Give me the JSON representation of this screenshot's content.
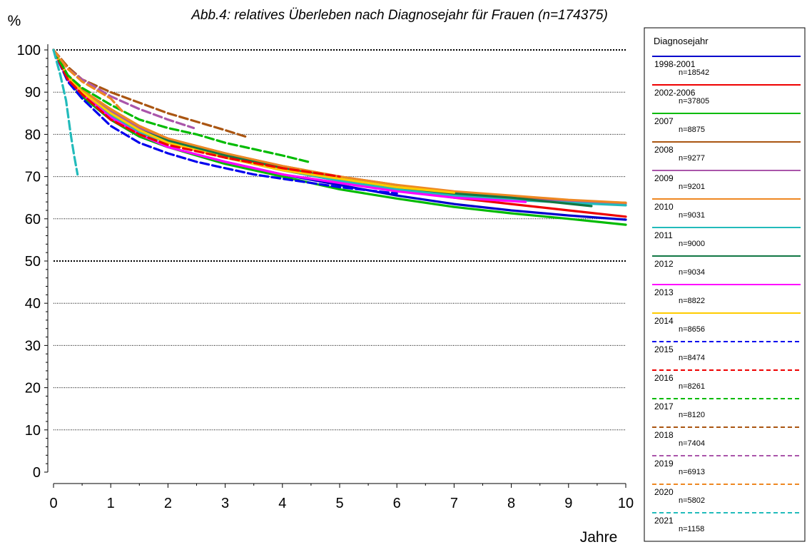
{
  "chart_data": {
    "type": "line",
    "title": "Abb.4: relatives Überleben nach Diagnosejahr für Frauen  (n=174375)",
    "ylabel": "%",
    "xlabel": "Jahre",
    "xlim": [
      0,
      10
    ],
    "ylim": [
      0,
      100
    ],
    "x_ticks": [
      0,
      1,
      2,
      3,
      4,
      5,
      6,
      7,
      8,
      9,
      10
    ],
    "y_ticks": [
      0,
      10,
      20,
      30,
      40,
      50,
      60,
      70,
      80,
      90,
      100
    ],
    "y_minor_step": 2,
    "grid": "horizontal dotted, heavier at 50 and 100",
    "legend": {
      "title": "Diagnosejahr",
      "placement": "right"
    },
    "series": [
      {
        "name": "1998-2001",
        "n": "n=18542",
        "color": "#0000cc",
        "dash": "solid",
        "points": [
          [
            0,
            100
          ],
          [
            0.25,
            93
          ],
          [
            0.5,
            89
          ],
          [
            1,
            83.5
          ],
          [
            1.5,
            79.5
          ],
          [
            2,
            77
          ],
          [
            3,
            73.5
          ],
          [
            4,
            70.5
          ],
          [
            5,
            68
          ],
          [
            6,
            65.5
          ],
          [
            7,
            63.5
          ],
          [
            8,
            62
          ],
          [
            9,
            60.8
          ],
          [
            10,
            59.8
          ]
        ]
      },
      {
        "name": "2002-2006",
        "n": "n=37805",
        "color": "#ee0000",
        "dash": "solid",
        "points": [
          [
            0,
            100
          ],
          [
            0.25,
            93.5
          ],
          [
            0.5,
            90
          ],
          [
            1,
            84.5
          ],
          [
            1.5,
            80.5
          ],
          [
            2,
            78
          ],
          [
            3,
            74.5
          ],
          [
            4,
            71.5
          ],
          [
            5,
            69
          ],
          [
            6,
            67
          ],
          [
            7,
            65
          ],
          [
            8,
            63.5
          ],
          [
            9,
            62
          ],
          [
            10,
            60.5
          ]
        ]
      },
      {
        "name": "2007",
        "n": "n=8875",
        "color": "#00bb00",
        "dash": "solid",
        "points": [
          [
            0,
            100
          ],
          [
            0.25,
            93
          ],
          [
            0.5,
            89
          ],
          [
            1,
            83.5
          ],
          [
            1.5,
            79.5
          ],
          [
            2,
            77
          ],
          [
            3,
            73
          ],
          [
            4,
            70
          ],
          [
            5,
            67
          ],
          [
            6,
            64.8
          ],
          [
            7,
            62.8
          ],
          [
            8,
            61.3
          ],
          [
            9,
            60
          ],
          [
            10,
            58.6
          ]
        ]
      },
      {
        "name": "2008",
        "n": "n=9277",
        "color": "#aa5511",
        "dash": "solid",
        "points": [
          [
            0,
            100
          ],
          [
            0.25,
            94
          ],
          [
            0.5,
            90.5
          ],
          [
            1,
            85.5
          ],
          [
            1.5,
            81.5
          ],
          [
            2,
            79
          ],
          [
            3,
            75.5
          ],
          [
            4,
            72.5
          ],
          [
            5,
            70
          ],
          [
            6,
            68
          ],
          [
            7,
            66
          ],
          [
            8,
            65
          ],
          [
            9,
            64.2
          ],
          [
            10,
            63.8
          ]
        ]
      },
      {
        "name": "2009",
        "n": "n=9201",
        "color": "#aa55aa",
        "dash": "solid",
        "points": [
          [
            0,
            100
          ],
          [
            0.25,
            94
          ],
          [
            0.5,
            90.5
          ],
          [
            1,
            85.5
          ],
          [
            1.5,
            81.5
          ],
          [
            2,
            79
          ],
          [
            3,
            75
          ],
          [
            4,
            72
          ],
          [
            5,
            69.5
          ],
          [
            6,
            67.5
          ],
          [
            7,
            65.8
          ],
          [
            8,
            64.8
          ],
          [
            9,
            64
          ],
          [
            10,
            63.6
          ]
        ]
      },
      {
        "name": "2010",
        "n": "n=9031",
        "color": "#ee8822",
        "dash": "solid",
        "points": [
          [
            0,
            100
          ],
          [
            0.25,
            94
          ],
          [
            0.5,
            90.5
          ],
          [
            1,
            86
          ],
          [
            1.5,
            82
          ],
          [
            2,
            79
          ],
          [
            3,
            75.5
          ],
          [
            4,
            72.5
          ],
          [
            5,
            70
          ],
          [
            6,
            68
          ],
          [
            7,
            66.5
          ],
          [
            8,
            65.5
          ],
          [
            9,
            64.5
          ],
          [
            10,
            63.8
          ]
        ]
      },
      {
        "name": "2011",
        "n": "n=9000",
        "color": "#22bbbb",
        "dash": "solid",
        "points": [
          [
            0,
            100
          ],
          [
            0.25,
            93.5
          ],
          [
            0.5,
            90
          ],
          [
            1,
            84.5
          ],
          [
            1.5,
            80.5
          ],
          [
            2,
            78
          ],
          [
            3,
            74.5
          ],
          [
            4,
            71.5
          ],
          [
            5,
            69
          ],
          [
            6,
            67
          ],
          [
            7,
            65.5
          ],
          [
            8,
            64.5
          ],
          [
            9,
            63.8
          ],
          [
            10,
            63.2
          ]
        ]
      },
      {
        "name": "2012",
        "n": "n=9034",
        "color": "#117744",
        "dash": "solid",
        "points": [
          [
            0,
            100
          ],
          [
            0.25,
            93.5
          ],
          [
            0.5,
            90
          ],
          [
            1,
            85
          ],
          [
            1.5,
            81
          ],
          [
            2,
            78.5
          ],
          [
            3,
            75
          ],
          [
            4,
            72
          ],
          [
            5,
            69.5
          ],
          [
            6,
            67.5
          ],
          [
            7,
            66
          ],
          [
            8,
            65
          ],
          [
            8.7,
            64
          ],
          [
            9.4,
            63
          ]
        ]
      },
      {
        "name": "2013",
        "n": "n=8822",
        "color": "#ff00ff",
        "dash": "solid",
        "points": [
          [
            0,
            100
          ],
          [
            0.25,
            93
          ],
          [
            0.5,
            89.5
          ],
          [
            1,
            84
          ],
          [
            1.5,
            80
          ],
          [
            2,
            77
          ],
          [
            3,
            73.5
          ],
          [
            4,
            70.5
          ],
          [
            5,
            68.5
          ],
          [
            6,
            66.5
          ],
          [
            7,
            65
          ],
          [
            8,
            64.2
          ],
          [
            8.25,
            64
          ]
        ]
      },
      {
        "name": "2014",
        "n": "n=8656",
        "color": "#ffcc00",
        "dash": "solid",
        "points": [
          [
            0,
            100
          ],
          [
            0.25,
            93.5
          ],
          [
            0.5,
            90
          ],
          [
            1,
            85
          ],
          [
            1.5,
            81
          ],
          [
            2,
            78
          ],
          [
            3,
            74.5
          ],
          [
            4,
            71.5
          ],
          [
            5,
            69.5
          ],
          [
            6,
            67.5
          ],
          [
            7,
            66.2
          ]
        ]
      },
      {
        "name": "2015",
        "n": "n=8474",
        "color": "#0000ee",
        "dash": "dashed",
        "points": [
          [
            0,
            100
          ],
          [
            0.25,
            92.5
          ],
          [
            0.5,
            88.5
          ],
          [
            1,
            82
          ],
          [
            1.5,
            78
          ],
          [
            2,
            75.5
          ],
          [
            2.5,
            73.5
          ],
          [
            3,
            72
          ],
          [
            3.5,
            70.5
          ],
          [
            4,
            69.5
          ],
          [
            5,
            67.5
          ],
          [
            6,
            66
          ]
        ]
      },
      {
        "name": "2016",
        "n": "n=8261",
        "color": "#ee0000",
        "dash": "dashed",
        "points": [
          [
            0,
            100
          ],
          [
            0.25,
            93
          ],
          [
            0.5,
            89.5
          ],
          [
            1,
            83.5
          ],
          [
            1.5,
            80
          ],
          [
            2,
            77.5
          ],
          [
            3,
            74.5
          ],
          [
            4,
            72
          ],
          [
            5,
            70
          ]
        ]
      },
      {
        "name": "2017",
        "n": "n=8120",
        "color": "#00bb00",
        "dash": "dashed",
        "points": [
          [
            0,
            100
          ],
          [
            0.25,
            94
          ],
          [
            0.5,
            91
          ],
          [
            1,
            87
          ],
          [
            1.5,
            83.5
          ],
          [
            2,
            81.5
          ],
          [
            2.5,
            80
          ],
          [
            3,
            78
          ],
          [
            3.5,
            76.5
          ],
          [
            4,
            75
          ],
          [
            4.45,
            73.5
          ]
        ]
      },
      {
        "name": "2018",
        "n": "n=7404",
        "color": "#aa5511",
        "dash": "dashed",
        "points": [
          [
            0,
            100
          ],
          [
            0.25,
            96
          ],
          [
            0.5,
            93
          ],
          [
            1,
            90
          ],
          [
            1.5,
            87.5
          ],
          [
            2,
            85
          ],
          [
            2.5,
            83
          ],
          [
            3,
            81
          ],
          [
            3.35,
            79.5
          ]
        ]
      },
      {
        "name": "2019",
        "n": "n=6913",
        "color": "#aa55aa",
        "dash": "dashed",
        "points": [
          [
            0,
            100
          ],
          [
            0.25,
            95.5
          ],
          [
            0.5,
            93
          ],
          [
            1,
            89
          ],
          [
            1.5,
            86
          ],
          [
            2,
            83.5
          ],
          [
            2.45,
            81.5
          ]
        ]
      },
      {
        "name": "2020",
        "n": "n=5802",
        "color": "#ee8822",
        "dash": "dashed",
        "points": [
          [
            0,
            100
          ],
          [
            0.25,
            95.5
          ],
          [
            0.5,
            92.5
          ],
          [
            1,
            88.5
          ],
          [
            1.2,
            85.5
          ]
        ]
      },
      {
        "name": "2021",
        "n": "n=1158",
        "color": "#22bbbb",
        "dash": "dashed",
        "points": [
          [
            0,
            100
          ],
          [
            0.12,
            94
          ],
          [
            0.22,
            88
          ],
          [
            0.3,
            80
          ],
          [
            0.36,
            75
          ],
          [
            0.42,
            70.5
          ]
        ]
      }
    ]
  }
}
